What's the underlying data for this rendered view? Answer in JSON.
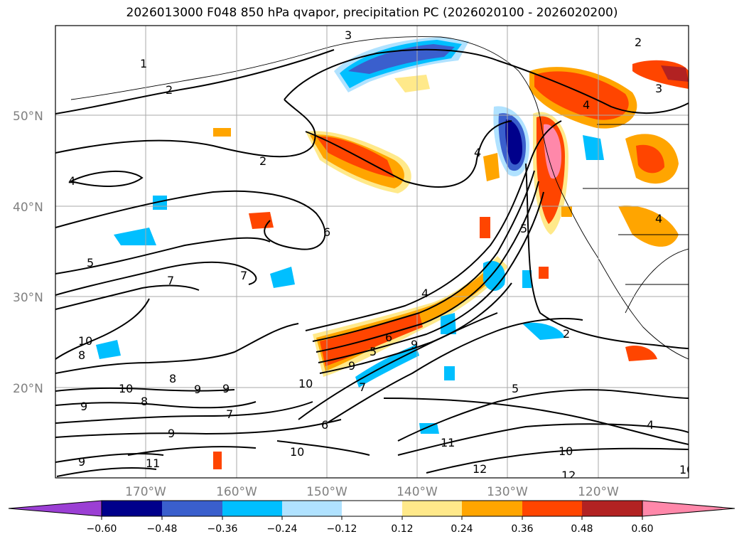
{
  "title": "2026013000 F048 850 hPa qvapor, precipitation PC (2026020100 - 2026020200)",
  "lat_labels": [
    "50°N",
    "40°N",
    "30°N",
    "20°N"
  ],
  "lon_labels": [
    "170°W",
    "160°W",
    "150°W",
    "140°W",
    "130°W",
    "120°W"
  ],
  "colorbar": {
    "ticks": [
      "−0.60",
      "−0.48",
      "−0.36",
      "−0.24",
      "−0.12",
      "0.12",
      "0.24",
      "0.36",
      "0.48",
      "0.60"
    ],
    "colors": [
      "#9b3fd4",
      "#00008b",
      "#3a5fcd",
      "#00bfff",
      "#b0e2ff",
      "#ffffff",
      "#ffe98a",
      "#ffa500",
      "#ff4500",
      "#b22222",
      "#ff88aa"
    ]
  },
  "contour_labels": [
    "1",
    "2",
    "3",
    "2",
    "4",
    "3",
    "4",
    "5",
    "4",
    "2",
    "6",
    "7",
    "7",
    "5",
    "5",
    "4",
    "6",
    "9",
    "9",
    "10",
    "8",
    "10",
    "9",
    "9",
    "8",
    "7",
    "8",
    "10",
    "7",
    "6",
    "9",
    "9",
    "11",
    "10",
    "11",
    "12",
    "10",
    "12",
    "5",
    "2",
    "4",
    "4",
    "9",
    "10"
  ],
  "colors": {
    "grid": "#aaaaaa",
    "contour": "#000000"
  }
}
